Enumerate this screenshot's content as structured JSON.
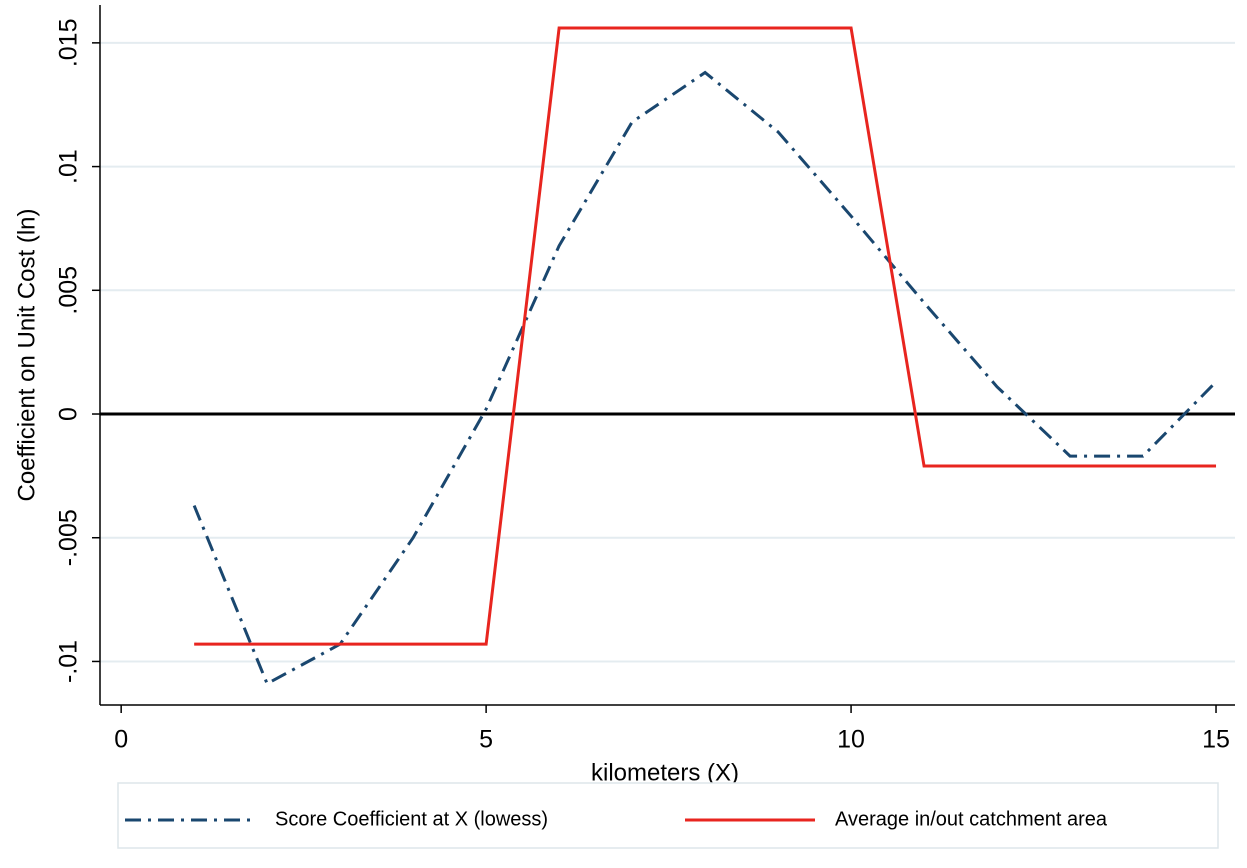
{
  "chart_data": {
    "type": "line",
    "x_label": "kilometers (X)",
    "y_label": "Coefficient on Unit Cost (ln)",
    "x": [
      1,
      2,
      3,
      4,
      5,
      6,
      7,
      8,
      9,
      10,
      11,
      12,
      13,
      14,
      15
    ],
    "series": [
      {
        "name": "Score Coefficient at X (lowess)",
        "color": "#1a476f",
        "dash": "dash-dot",
        "values": [
          -0.0037,
          -0.0109,
          -0.0093,
          -0.005,
          0.0002,
          0.0068,
          0.0118,
          0.0138,
          0.0114,
          0.008,
          0.0045,
          0.0011,
          -0.0017,
          -0.0017,
          0.0013
        ]
      },
      {
        "name": "Average in/out catchment area",
        "color": "#e8251f",
        "dash": "solid",
        "values": [
          -0.0093,
          -0.0093,
          -0.0093,
          -0.0093,
          -0.0093,
          0.0156,
          0.0156,
          0.0156,
          0.0156,
          0.0156,
          -0.0021,
          -0.0021,
          -0.0021,
          -0.0021,
          -0.0021
        ]
      }
    ],
    "xlim": [
      -0.29,
      15.26
    ],
    "ylim": [
      -0.01176,
      0.01653
    ],
    "xticks": [
      0,
      5,
      10,
      15
    ],
    "yticks": [
      {
        "value": -0.01,
        "label": "-.01"
      },
      {
        "value": -0.005,
        "label": "-.005"
      },
      0,
      {
        "value": 0.005,
        "label": ".005"
      },
      {
        "value": 0.01,
        "label": ".01"
      },
      {
        "value": 0.015,
        "label": ".015"
      }
    ],
    "grid": true,
    "yline": 0,
    "legend": "bottom"
  }
}
